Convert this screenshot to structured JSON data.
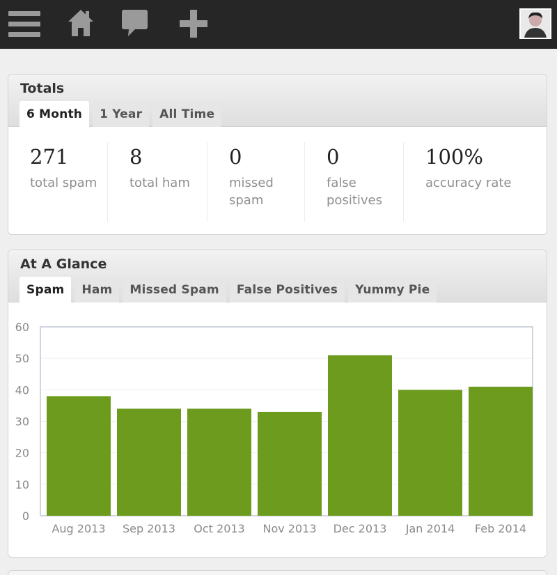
{
  "totals": {
    "title": "Totals",
    "tabs": [
      "6 Month",
      "1 Year",
      "All Time"
    ],
    "active_tab": 0,
    "stats": [
      {
        "value": "271",
        "label": "total spam"
      },
      {
        "value": "8",
        "label": "total ham"
      },
      {
        "value": "0",
        "label": "missed spam"
      },
      {
        "value": "0",
        "label": "false positives"
      },
      {
        "value": "100%",
        "label": "accuracy rate"
      }
    ]
  },
  "glance": {
    "title": "At A Glance",
    "tabs": [
      "Spam",
      "Ham",
      "Missed Spam",
      "False Positives",
      "Yummy Pie"
    ],
    "active_tab": 0
  },
  "colors": {
    "bar": "#6d9b1e",
    "topbar": "#262626",
    "icon": "#9a9a9a"
  },
  "icons": [
    "menu-icon",
    "home-icon",
    "comment-icon",
    "plus-icon"
  ],
  "chart_data": {
    "type": "bar",
    "categories": [
      "Aug 2013",
      "Sep 2013",
      "Oct 2013",
      "Nov 2013",
      "Dec 2013",
      "Jan 2014",
      "Feb 2014"
    ],
    "values": [
      38,
      34,
      34,
      33,
      51,
      40,
      41
    ],
    "ylim": [
      0,
      60
    ],
    "yticks": [
      0,
      10,
      20,
      30,
      40,
      50,
      60
    ],
    "grid": true
  }
}
